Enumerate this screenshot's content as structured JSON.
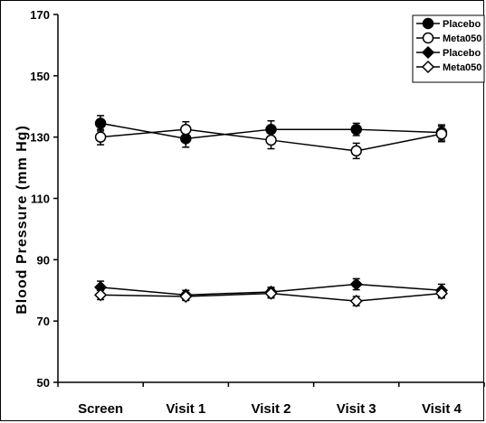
{
  "chart_data": {
    "type": "line",
    "title": "",
    "xlabel": "",
    "ylabel": "Blood Pressure (mm Hg)",
    "categories": [
      "Screen",
      "Visit 1",
      "Visit 2",
      "Visit 3",
      "Visit 4"
    ],
    "ylim": [
      50,
      170
    ],
    "yticks": [
      "50",
      "70",
      "90",
      "110",
      "130",
      "150",
      "170"
    ],
    "grid": false,
    "legend_position": "top-right",
    "series": [
      {
        "name": "Placebo",
        "marker": "filled-circle",
        "values": [
          134.5,
          129.5,
          132.5,
          132.5,
          131.5
        ],
        "errors": [
          2.5,
          2.8,
          2.8,
          2.0,
          2.5
        ]
      },
      {
        "name": "Meta050",
        "marker": "open-circle",
        "values": [
          130,
          132.5,
          129,
          125.5,
          131
        ],
        "errors": [
          2.5,
          2.5,
          2.8,
          2.5,
          2.5
        ]
      },
      {
        "name": "Placebo",
        "marker": "filled-diamond",
        "values": [
          81,
          78.5,
          79.5,
          82,
          80
        ],
        "errors": [
          2.0,
          1.5,
          1.5,
          1.8,
          2.0
        ]
      },
      {
        "name": "Meta050",
        "marker": "open-diamond",
        "values": [
          78.5,
          78,
          79,
          76.5,
          79
        ],
        "errors": [
          1.5,
          1.3,
          1.5,
          1.5,
          1.5
        ]
      }
    ]
  }
}
